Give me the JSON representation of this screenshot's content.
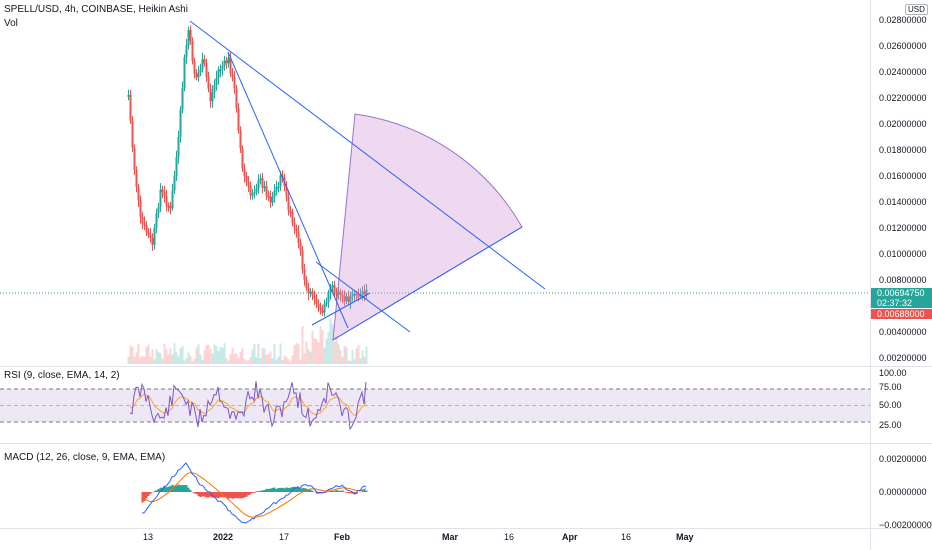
{
  "header": {
    "symbol_line": "SPELL/USD, 4h, COINBASE, Heikin Ashi",
    "volume_label": "Vol"
  },
  "price_scale": {
    "currency": "USD",
    "ticks": [
      "0.02800000",
      "0.02600000",
      "0.02400000",
      "0.02200000",
      "0.02000000",
      "0.01800000",
      "0.01600000",
      "0.01400000",
      "0.01200000",
      "0.01000000",
      "0.00800000",
      "0.00600000",
      "0.00400000",
      "0.00200000"
    ],
    "last_price": "0.00694750",
    "countdown": "02:37:32",
    "low_marker": "0.00688000"
  },
  "rsi": {
    "label": "RSI (9, close, EMA, 14, 2)",
    "ticks": [
      "100.00",
      "75.00",
      "50.00",
      "25.00"
    ]
  },
  "macd": {
    "label": "MACD (12, 26, close, 9, EMA, EMA)",
    "ticks": [
      "0.00200000",
      "0.00000000",
      "−0.00200000"
    ]
  },
  "time_axis": {
    "labels": [
      "13",
      "2022",
      "17",
      "Feb",
      "Mar",
      "16",
      "Apr",
      "16",
      "May"
    ]
  },
  "colors": {
    "up": "#26a69a",
    "down": "#ef5350",
    "trendline": "#2962ff",
    "fan_fill": "#ce93d8",
    "rsi_line": "#7e57c2",
    "rsi_band": "#ede7f6",
    "macd_line": "#2962ff",
    "signal_line": "#ff6d00",
    "last_price_badge": "#26a69a",
    "low_badge": "#ef5350"
  }
}
